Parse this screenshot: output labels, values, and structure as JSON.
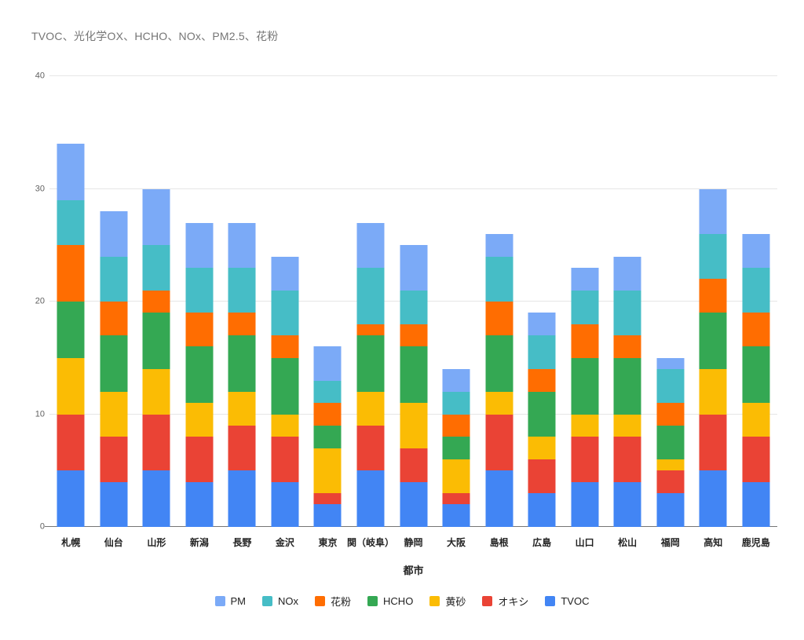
{
  "chart_data": {
    "type": "bar",
    "stacked": true,
    "title": "TVOC、光化学OX、HCHO、NOx、PM2.5、花粉",
    "xlabel": "都市",
    "ylabel": "",
    "ylim": [
      0,
      40
    ],
    "y_ticks": [
      0,
      10,
      20,
      30,
      40
    ],
    "grid": true,
    "legend_position": "bottom",
    "categories": [
      "札幌",
      "仙台",
      "山形",
      "新潟",
      "長野",
      "金沢",
      "東京",
      "関（岐阜）",
      "静岡",
      "大阪",
      "島根",
      "広島",
      "山口",
      "松山",
      "福岡",
      "高知",
      "鹿児島"
    ],
    "series": [
      {
        "name": "TVOC",
        "key": "tvoc",
        "color": "#4285F4",
        "values": [
          5,
          4,
          5,
          4,
          5,
          4,
          2,
          5,
          4,
          2,
          5,
          3,
          4,
          4,
          3,
          5,
          4
        ]
      },
      {
        "name": "オキシ",
        "key": "oxidant",
        "color": "#EA4335",
        "values": [
          5,
          4,
          5,
          4,
          4,
          4,
          1,
          4,
          3,
          1,
          5,
          3,
          4,
          4,
          2,
          5,
          4
        ]
      },
      {
        "name": "黄砂",
        "key": "yellow-sand",
        "color": "#FBBC04",
        "values": [
          5,
          4,
          4,
          3,
          3,
          2,
          4,
          3,
          4,
          3,
          2,
          2,
          2,
          2,
          1,
          4,
          3
        ]
      },
      {
        "name": "HCHO",
        "key": "hcho",
        "color": "#34A853",
        "values": [
          5,
          5,
          5,
          5,
          5,
          5,
          2,
          5,
          5,
          2,
          5,
          4,
          5,
          5,
          3,
          5,
          5
        ]
      },
      {
        "name": "花粉",
        "key": "pollen",
        "color": "#FF6D01",
        "values": [
          5,
          3,
          2,
          3,
          2,
          2,
          2,
          1,
          2,
          2,
          3,
          2,
          3,
          2,
          2,
          3,
          3
        ]
      },
      {
        "name": "NOx",
        "key": "nox",
        "color": "#46BDC6",
        "values": [
          4,
          4,
          4,
          4,
          4,
          4,
          2,
          5,
          3,
          2,
          4,
          3,
          3,
          4,
          3,
          4,
          4
        ]
      },
      {
        "name": "PM",
        "key": "pm",
        "color": "#7BAAF7",
        "values": [
          5,
          4,
          5,
          4,
          4,
          3,
          3,
          4,
          4,
          2,
          2,
          2,
          2,
          3,
          1,
          4,
          3
        ]
      }
    ],
    "legend_order": [
      "PM",
      "NOx",
      "花粉",
      "HCHO",
      "黄砂",
      "オキシ",
      "TVOC"
    ]
  }
}
